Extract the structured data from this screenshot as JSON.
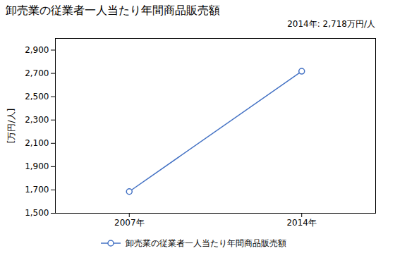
{
  "chart_data": {
    "type": "line",
    "title": "卸売業の従業者一人当たり年間商品販売額",
    "ylabel": "[万円/人]",
    "annotation": "2014年: 2,718万円/人",
    "x": [
      2007,
      2014
    ],
    "series": [
      {
        "name": "卸売業の従業者一人当たり年間商品販売額",
        "color": "#4472C4",
        "marker": "circle",
        "values": [
          1686,
          2718
        ]
      }
    ],
    "xlim": [
      2004,
      2017
    ],
    "xticks": [
      {
        "value": 2007,
        "label": "2007年"
      },
      {
        "value": 2014,
        "label": "2014年"
      }
    ],
    "ylim": [
      1500,
      3000
    ],
    "yticks": [
      {
        "value": 1500,
        "label": "1,500"
      },
      {
        "value": 1700,
        "label": "1,700"
      },
      {
        "value": 1900,
        "label": "1,900"
      },
      {
        "value": 2100,
        "label": "2,100"
      },
      {
        "value": 2300,
        "label": "2,300"
      },
      {
        "value": 2500,
        "label": "2,500"
      },
      {
        "value": 2700,
        "label": "2,700"
      },
      {
        "value": 2900,
        "label": "2,900"
      }
    ],
    "grid": false,
    "legend": "bottom"
  }
}
